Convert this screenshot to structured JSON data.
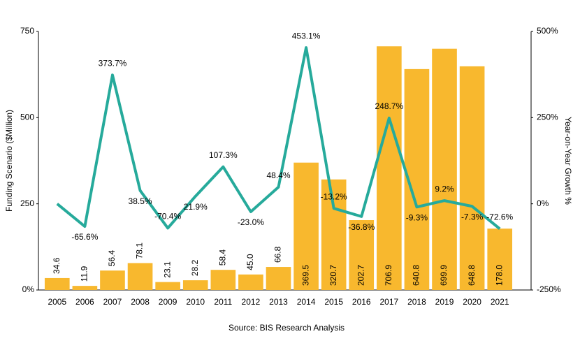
{
  "chart_data": {
    "type": "bar",
    "categories": [
      "2005",
      "2006",
      "2007",
      "2008",
      "2009",
      "2010",
      "2011",
      "2012",
      "2013",
      "2014",
      "2015",
      "2016",
      "2017",
      "2018",
      "2019",
      "2020",
      "2021"
    ],
    "series": [
      {
        "color": "#f8b82e",
        "values": [
          34.6,
          11.9,
          56.4,
          78.1,
          23.1,
          28.2,
          58.4,
          45.0,
          66.8,
          369.5,
          320.7,
          202.7,
          706.9,
          640.8,
          699.9,
          648.8,
          178.0
        ],
        "value_labels": [
          "34.6",
          "11.9",
          "56.4",
          "78.1",
          "23.1",
          "28.2",
          "58.4",
          "45.0",
          "66.8",
          "369.5",
          "320.7",
          "202.7",
          "706.9",
          "640.8",
          "699.9",
          "648.8",
          "178.0"
        ]
      },
      {
        "type": "line",
        "axis": "y2",
        "color": "#26aa9b",
        "values": [
          0,
          -65.6,
          373.7,
          38.5,
          -70.4,
          21.9,
          107.3,
          -23.0,
          48.4,
          453.1,
          -13.2,
          -36.8,
          248.7,
          -9.3,
          9.2,
          -7.3,
          -72.6
        ],
        "value_labels": [
          null,
          "-65.6%",
          "373.7%",
          "38.5%",
          "-70.4%",
          "21.9%",
          "107.3%",
          "-23.0%",
          "48.4%",
          "453.1%",
          "-13.2%",
          "-36.8%",
          "248.7%",
          "-9.3%",
          "9.2%",
          "-7.3%",
          "-72.6%"
        ]
      }
    ],
    "ylabel": "Funding Scenario ($Million)",
    "y2label": "Year-on-Year Growth %",
    "ylim": [
      0,
      750
    ],
    "yticks": [
      {
        "value": 0,
        "label": "0%"
      },
      250,
      500,
      750
    ],
    "y2lim": [
      -250,
      500
    ],
    "y2ticks": [
      {
        "value": -250,
        "label": "-250%"
      },
      {
        "value": 0,
        "label": "0%"
      },
      {
        "value": 250,
        "label": "250%"
      },
      {
        "value": 500,
        "label": "500%"
      }
    ],
    "source": "Source: BIS Research Analysis"
  }
}
